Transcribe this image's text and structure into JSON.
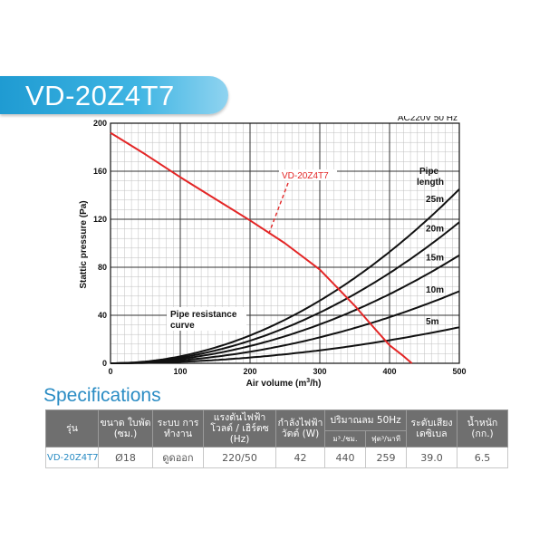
{
  "header": {
    "model": "VD-20Z4T7"
  },
  "chart_data": {
    "type": "line",
    "title": "",
    "power_note": "AC220V 50 Hz",
    "xlabel": "Air volume (m3/h)",
    "xlabel_main": "Air volume (m",
    "xlabel_sup": "3",
    "xlabel_tail": "/h)",
    "ylabel": "Stattic pressure (Pa)",
    "xlim": [
      0,
      500
    ],
    "ylim": [
      0,
      200
    ],
    "x_ticks": [
      0,
      100,
      200,
      300,
      400,
      500
    ],
    "y_ticks": [
      0,
      40,
      80,
      120,
      160,
      200
    ],
    "grid": true,
    "fan_curve": {
      "name": "VD-20Z4T7",
      "color": "#e32626",
      "x": [
        0,
        50,
        100,
        150,
        200,
        250,
        300,
        350,
        380,
        400,
        420,
        432
      ],
      "y": [
        192,
        174,
        155,
        137,
        119,
        100,
        78,
        48,
        28,
        15,
        6,
        0
      ]
    },
    "pipe_legend_title": [
      "Pipe",
      "length"
    ],
    "pipe_resistance_label": [
      "Pipe resistance",
      "curve"
    ],
    "pipe_curves": [
      {
        "name": "25m",
        "a": 0.00058,
        "xmax": 500
      },
      {
        "name": "20m",
        "a": 0.00047,
        "xmax": 500
      },
      {
        "name": "15m",
        "a": 0.00036,
        "xmax": 500
      },
      {
        "name": "10m",
        "a": 0.00024,
        "xmax": 500
      },
      {
        "name": "5m",
        "a": 0.00012,
        "xmax": 500
      }
    ]
  },
  "specs": {
    "title": "Specifications",
    "headers": {
      "model": "รุ่น",
      "blade_size": "ขนาด ใบพัด (ซม.)",
      "system": "ระบบ การทำงาน",
      "voltage": "แรงดันไฟฟ้า โวลต์ / เฮิร์ตซ (Hz)",
      "power": "กำลังไฟฟ้า วัตต์ (W)",
      "airflow": "ปริมาณลม 50Hz",
      "airflow_m3h": "ม³./ชม.",
      "airflow_ftmin": "ฟุต³/นาที",
      "noise": "ระดับเสียง เดซิเบล",
      "weight": "น้ำหนัก (กก.)"
    },
    "row": {
      "model": "VD-20Z4T7",
      "blade_size": "Ø18",
      "system": "ดูดออก",
      "voltage": "220/50",
      "power": "42",
      "airflow_m3h": "440",
      "airflow_ftmin": "259",
      "noise": "39.0",
      "weight": "6.5"
    }
  }
}
